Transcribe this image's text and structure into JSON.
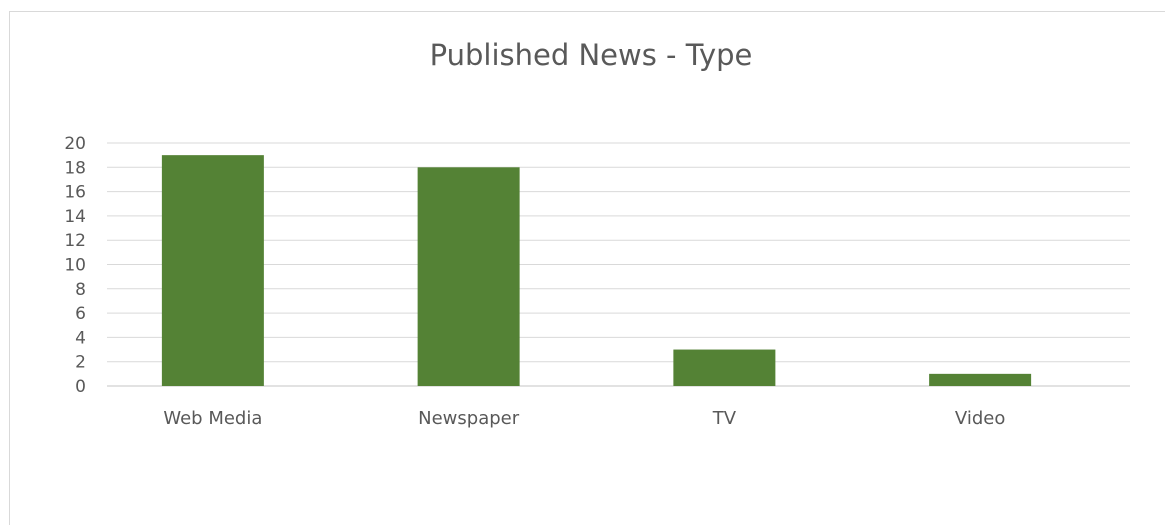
{
  "chart_data": {
    "type": "bar",
    "title": "Published News - Type",
    "categories": [
      "Web Media",
      "Newspaper",
      "TV",
      "Video"
    ],
    "values": [
      19,
      18,
      3,
      1
    ],
    "xlabel": "",
    "ylabel": "",
    "ylim": [
      0,
      20
    ],
    "yticks": [
      0,
      2,
      4,
      6,
      8,
      10,
      12,
      14,
      16,
      18,
      20
    ],
    "grid": true,
    "legend": "none",
    "colors": {
      "bar": "#548235",
      "grid": "#d9d9d9",
      "text": "#595959"
    }
  }
}
